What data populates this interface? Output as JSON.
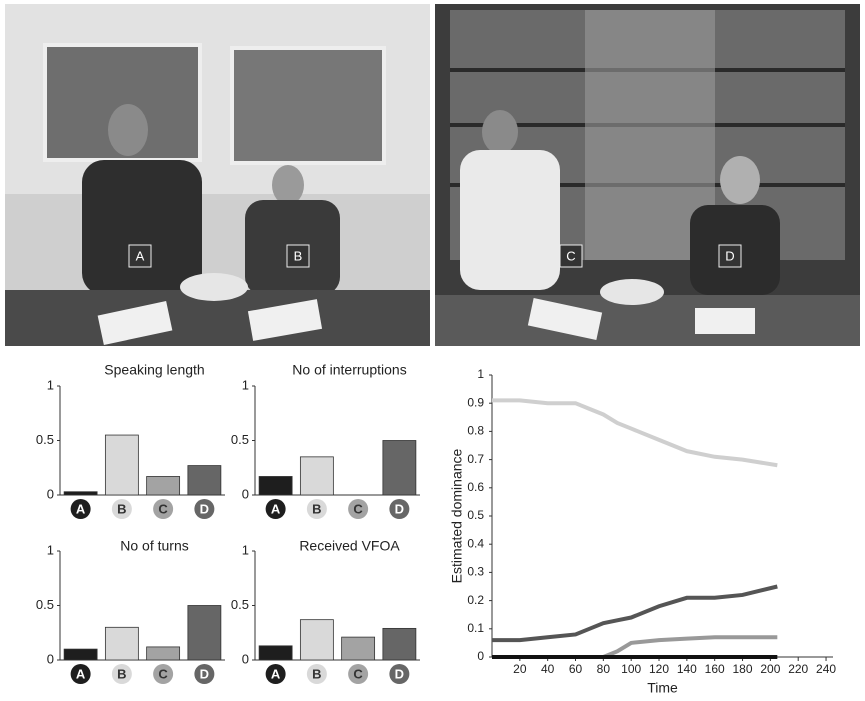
{
  "video_labels": [
    "A",
    "B",
    "C",
    "D"
  ],
  "chart_data": [
    {
      "type": "bar",
      "title": "Speaking length",
      "categories": [
        "A",
        "B",
        "C",
        "D"
      ],
      "colors": [
        "#1e1e1e",
        "#d9d9d9",
        "#a3a3a3",
        "#666666"
      ],
      "values": [
        0.03,
        0.55,
        0.17,
        0.27
      ],
      "ylim": [
        0,
        1
      ],
      "yticks": [
        0,
        0.5,
        1
      ]
    },
    {
      "type": "bar",
      "title": "No of interruptions",
      "categories": [
        "A",
        "B",
        "C",
        "D"
      ],
      "colors": [
        "#1e1e1e",
        "#d9d9d9",
        "#a3a3a3",
        "#666666"
      ],
      "values": [
        0.17,
        0.35,
        0,
        0.5
      ],
      "ylim": [
        0,
        1
      ],
      "yticks": [
        0,
        0.5,
        1
      ]
    },
    {
      "type": "bar",
      "title": "No of turns",
      "categories": [
        "A",
        "B",
        "C",
        "D"
      ],
      "colors": [
        "#1e1e1e",
        "#d9d9d9",
        "#a3a3a3",
        "#666666"
      ],
      "values": [
        0.1,
        0.3,
        0.12,
        0.5
      ],
      "ylim": [
        0,
        1
      ],
      "yticks": [
        0,
        0.5,
        1
      ]
    },
    {
      "type": "bar",
      "title": "Received VFOA",
      "categories": [
        "A",
        "B",
        "C",
        "D"
      ],
      "colors": [
        "#1e1e1e",
        "#d9d9d9",
        "#a3a3a3",
        "#666666"
      ],
      "values": [
        0.13,
        0.37,
        0.21,
        0.29
      ],
      "ylim": [
        0,
        1
      ],
      "yticks": [
        0,
        0.5,
        1
      ]
    },
    {
      "type": "line",
      "xlabel": "Time",
      "ylabel": "Estimated dominance",
      "x": [
        0,
        20,
        40,
        60,
        70,
        80,
        90,
        100,
        120,
        140,
        160,
        180,
        205
      ],
      "series": [
        {
          "color": "#cfcfcf",
          "values": [
            0.91,
            0.91,
            0.9,
            0.9,
            0.88,
            0.86,
            0.83,
            0.81,
            0.77,
            0.73,
            0.71,
            0.7,
            0.68
          ]
        },
        {
          "color": "#555555",
          "values": [
            0.06,
            0.06,
            0.07,
            0.08,
            0.1,
            0.12,
            0.13,
            0.14,
            0.18,
            0.21,
            0.21,
            0.22,
            0.25
          ]
        },
        {
          "color": "#999999",
          "values": [
            0,
            0,
            0,
            0,
            0,
            0,
            0.02,
            0.05,
            0.06,
            0.065,
            0.07,
            0.07,
            0.07
          ]
        },
        {
          "color": "#111111",
          "values": [
            0,
            0,
            0,
            0,
            0,
            0,
            0,
            0,
            0,
            0,
            0,
            0,
            0
          ]
        }
      ],
      "xlim": [
        0,
        245
      ],
      "xticks": [
        20,
        40,
        60,
        80,
        100,
        120,
        140,
        160,
        180,
        200,
        220,
        240
      ],
      "ylim": [
        0,
        1
      ],
      "yticks": [
        0,
        0.1,
        0.2,
        0.3,
        0.4,
        0.5,
        0.6,
        0.7,
        0.8,
        0.9,
        1
      ]
    }
  ]
}
